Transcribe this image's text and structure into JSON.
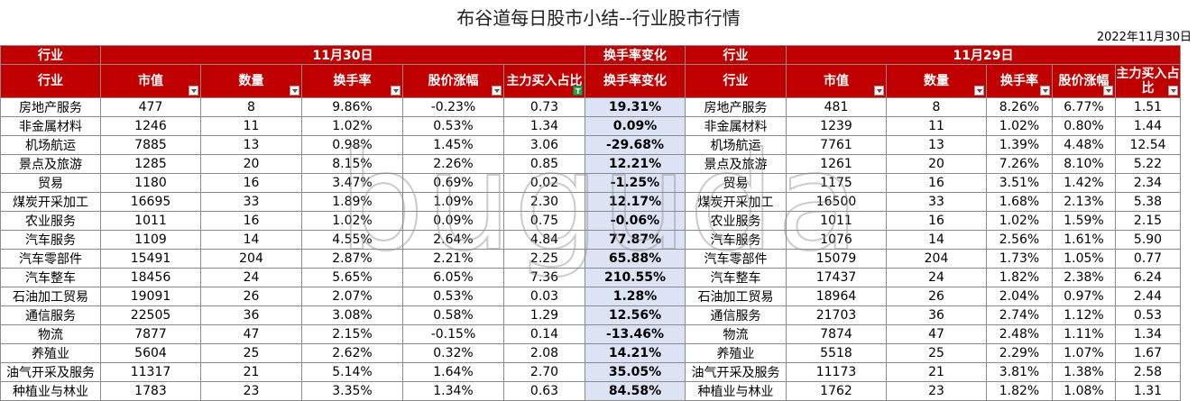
{
  "title": "布谷道每日股市小结--行业股市行情",
  "date": "2022年11月30日",
  "watermark": "buguda",
  "groups": {
    "industry": "行业",
    "nov30": "11月30日",
    "change": "换手率变化",
    "industry2": "行业",
    "nov29": "11月29日"
  },
  "columns": [
    "行业",
    "市值",
    "数量",
    "换手率",
    "股价涨幅",
    "主力买入占比",
    "换手率变化",
    "行业",
    "市值",
    "数量",
    "换手率",
    "股价涨幅",
    "主力买入占比"
  ],
  "rows": [
    [
      "房地产服务",
      "477",
      "8",
      "9.86%",
      "-0.23%",
      "0.73",
      "19.31%",
      "房地产服务",
      "481",
      "8",
      "8.26%",
      "6.77%",
      "1.51"
    ],
    [
      "非金属材料",
      "1246",
      "11",
      "1.02%",
      "0.53%",
      "1.34",
      "0.09%",
      "非金属材料",
      "1239",
      "11",
      "1.02%",
      "0.80%",
      "1.44"
    ],
    [
      "机场航运",
      "7885",
      "13",
      "0.98%",
      "1.45%",
      "3.06",
      "-29.68%",
      "机场航运",
      "7761",
      "13",
      "1.39%",
      "4.48%",
      "12.54"
    ],
    [
      "景点及旅游",
      "1285",
      "20",
      "8.15%",
      "2.26%",
      "0.85",
      "12.21%",
      "景点及旅游",
      "1261",
      "20",
      "7.26%",
      "8.10%",
      "5.22"
    ],
    [
      "贸易",
      "1180",
      "16",
      "3.47%",
      "0.69%",
      "0.02",
      "-1.25%",
      "贸易",
      "1175",
      "16",
      "3.51%",
      "1.42%",
      "2.34"
    ],
    [
      "煤炭开采加工",
      "16695",
      "33",
      "1.89%",
      "1.09%",
      "2.30",
      "12.17%",
      "煤炭开采加工",
      "16500",
      "33",
      "1.68%",
      "2.13%",
      "5.38"
    ],
    [
      "农业服务",
      "1011",
      "16",
      "1.02%",
      "0.09%",
      "0.75",
      "-0.06%",
      "农业服务",
      "1011",
      "16",
      "1.02%",
      "1.59%",
      "2.15"
    ],
    [
      "汽车服务",
      "1109",
      "14",
      "4.55%",
      "2.64%",
      "4.84",
      "77.87%",
      "汽车服务",
      "1076",
      "14",
      "2.56%",
      "1.61%",
      "5.90"
    ],
    [
      "汽车零部件",
      "15491",
      "204",
      "2.87%",
      "2.21%",
      "2.25",
      "65.88%",
      "汽车零部件",
      "15079",
      "204",
      "1.73%",
      "1.05%",
      "0.77"
    ],
    [
      "汽车整车",
      "18456",
      "24",
      "5.65%",
      "6.05%",
      "7.36",
      "210.55%",
      "汽车整车",
      "17437",
      "24",
      "1.82%",
      "2.38%",
      "6.24"
    ],
    [
      "石油加工贸易",
      "19091",
      "26",
      "2.07%",
      "0.53%",
      "0.03",
      "1.28%",
      "石油加工贸易",
      "18964",
      "26",
      "2.04%",
      "0.97%",
      "2.44"
    ],
    [
      "通信服务",
      "22505",
      "36",
      "3.08%",
      "0.58%",
      "1.29",
      "12.56%",
      "通信服务",
      "21703",
      "36",
      "2.74%",
      "1.12%",
      "0.53"
    ],
    [
      "物流",
      "7877",
      "47",
      "2.15%",
      "-0.15%",
      "0.14",
      "-13.46%",
      "物流",
      "7874",
      "47",
      "2.48%",
      "1.11%",
      "1.34"
    ],
    [
      "养殖业",
      "5604",
      "25",
      "2.62%",
      "0.32%",
      "2.08",
      "14.21%",
      "养殖业",
      "5518",
      "25",
      "2.29%",
      "1.07%",
      "1.67"
    ],
    [
      "油气开采及服务",
      "11317",
      "21",
      "5.14%",
      "1.64%",
      "2.70",
      "35.05%",
      "油气开采及服务",
      "11173",
      "21",
      "3.81%",
      "1.38%",
      "2.58"
    ],
    [
      "种植业与林业",
      "1783",
      "23",
      "3.35%",
      "1.34%",
      "0.63",
      "84.58%",
      "种植业与林业",
      "1762",
      "23",
      "1.82%",
      "1.08%",
      "1.31"
    ]
  ],
  "colors": {
    "header_bg": "#c00000",
    "change_bg": "#dbe3f4"
  }
}
